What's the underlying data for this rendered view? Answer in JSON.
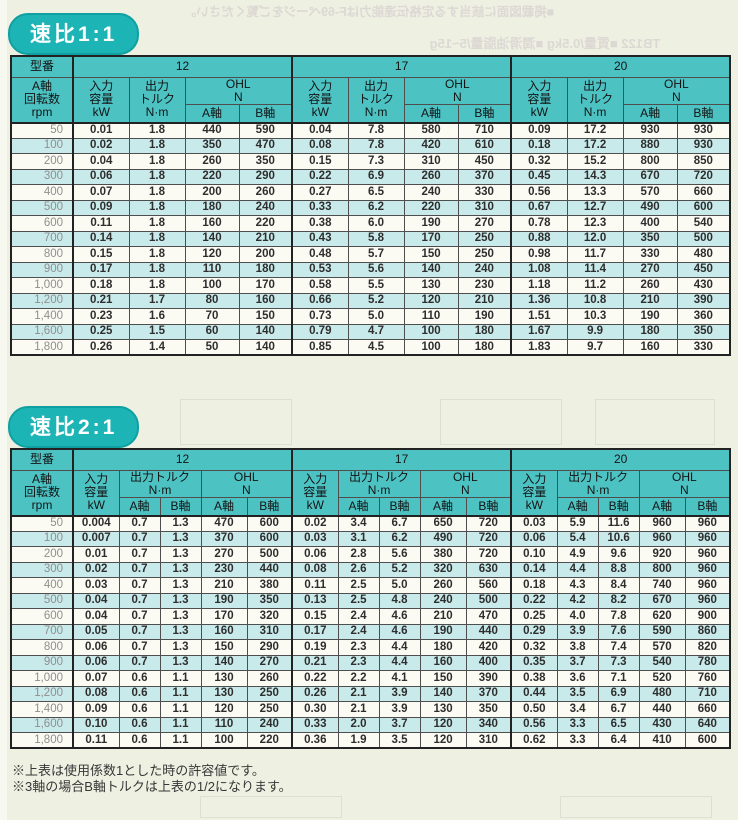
{
  "page": {
    "title_ratio_1": "速比1:1",
    "title_ratio_2": "速比2:1",
    "notes": [
      "※上表は使用係数1とした時の許容値です。",
      "※3軸の場合B軸トルクは上表の1/2になります。"
    ]
  },
  "colors": {
    "pill_teal": "#1db4b6",
    "header_teal": "#4cc2c3",
    "row_alt_cyan": "#c9eaea",
    "row_base": "#fbfbf3",
    "page_bg": "#eef0e2"
  },
  "headers": {
    "model": "型番",
    "models": [
      "12",
      "17",
      "20"
    ],
    "rpm": "A軸\n回転数\nrpm",
    "input": "入力\n容量\nkW",
    "torque_single": "出力\nトルク\nN·m",
    "torque_double": "出力トルク\nN·m",
    "ohl": "OHL\nN",
    "axis_a": "A軸",
    "axis_b": "B軸"
  },
  "table1": {
    "rows": [
      [
        "50",
        "0.01",
        "1.8",
        "440",
        "590",
        "0.04",
        "7.8",
        "580",
        "710",
        "0.09",
        "17.2",
        "930",
        "930"
      ],
      [
        "100",
        "0.02",
        "1.8",
        "350",
        "470",
        "0.08",
        "7.8",
        "420",
        "610",
        "0.18",
        "17.2",
        "880",
        "930"
      ],
      [
        "200",
        "0.04",
        "1.8",
        "260",
        "350",
        "0.15",
        "7.3",
        "310",
        "450",
        "0.32",
        "15.2",
        "800",
        "850"
      ],
      [
        "300",
        "0.06",
        "1.8",
        "220",
        "290",
        "0.22",
        "6.9",
        "260",
        "370",
        "0.45",
        "14.3",
        "670",
        "720"
      ],
      [
        "400",
        "0.07",
        "1.8",
        "200",
        "260",
        "0.27",
        "6.5",
        "240",
        "330",
        "0.56",
        "13.3",
        "570",
        "660"
      ],
      [
        "500",
        "0.09",
        "1.8",
        "180",
        "240",
        "0.33",
        "6.2",
        "220",
        "310",
        "0.67",
        "12.7",
        "490",
        "600"
      ],
      [
        "600",
        "0.11",
        "1.8",
        "160",
        "220",
        "0.38",
        "6.0",
        "190",
        "270",
        "0.78",
        "12.3",
        "400",
        "540"
      ],
      [
        "700",
        "0.14",
        "1.8",
        "140",
        "210",
        "0.43",
        "5.8",
        "170",
        "250",
        "0.88",
        "12.0",
        "350",
        "500"
      ],
      [
        "800",
        "0.15",
        "1.8",
        "120",
        "200",
        "0.48",
        "5.7",
        "150",
        "250",
        "0.98",
        "11.7",
        "330",
        "480"
      ],
      [
        "900",
        "0.17",
        "1.8",
        "110",
        "180",
        "0.53",
        "5.6",
        "140",
        "240",
        "1.08",
        "11.4",
        "270",
        "450"
      ],
      [
        "1,000",
        "0.18",
        "1.8",
        "100",
        "170",
        "0.58",
        "5.5",
        "130",
        "230",
        "1.18",
        "11.2",
        "260",
        "430"
      ],
      [
        "1,200",
        "0.21",
        "1.7",
        "80",
        "160",
        "0.66",
        "5.2",
        "120",
        "210",
        "1.36",
        "10.8",
        "210",
        "390"
      ],
      [
        "1,400",
        "0.23",
        "1.6",
        "70",
        "150",
        "0.73",
        "5.0",
        "110",
        "190",
        "1.51",
        "10.3",
        "190",
        "360"
      ],
      [
        "1,600",
        "0.25",
        "1.5",
        "60",
        "140",
        "0.79",
        "4.7",
        "100",
        "180",
        "1.67",
        "9.9",
        "180",
        "350"
      ],
      [
        "1,800",
        "0.26",
        "1.4",
        "50",
        "140",
        "0.85",
        "4.5",
        "100",
        "180",
        "1.83",
        "9.7",
        "160",
        "330"
      ]
    ]
  },
  "table2": {
    "rows": [
      [
        "50",
        "0.004",
        "0.7",
        "1.3",
        "470",
        "600",
        "0.02",
        "3.4",
        "6.7",
        "650",
        "720",
        "0.03",
        "5.9",
        "11.6",
        "960",
        "960"
      ],
      [
        "100",
        "0.007",
        "0.7",
        "1.3",
        "370",
        "600",
        "0.03",
        "3.1",
        "6.2",
        "490",
        "720",
        "0.06",
        "5.4",
        "10.6",
        "960",
        "960"
      ],
      [
        "200",
        "0.01",
        "0.7",
        "1.3",
        "270",
        "500",
        "0.06",
        "2.8",
        "5.6",
        "380",
        "720",
        "0.10",
        "4.9",
        "9.6",
        "920",
        "960"
      ],
      [
        "300",
        "0.02",
        "0.7",
        "1.3",
        "230",
        "440",
        "0.08",
        "2.6",
        "5.2",
        "320",
        "630",
        "0.14",
        "4.4",
        "8.8",
        "800",
        "960"
      ],
      [
        "400",
        "0.03",
        "0.7",
        "1.3",
        "210",
        "380",
        "0.11",
        "2.5",
        "5.0",
        "260",
        "560",
        "0.18",
        "4.3",
        "8.4",
        "740",
        "960"
      ],
      [
        "500",
        "0.04",
        "0.7",
        "1.3",
        "190",
        "350",
        "0.13",
        "2.5",
        "4.8",
        "240",
        "500",
        "0.22",
        "4.2",
        "8.2",
        "670",
        "960"
      ],
      [
        "600",
        "0.04",
        "0.7",
        "1.3",
        "170",
        "320",
        "0.15",
        "2.4",
        "4.6",
        "210",
        "470",
        "0.25",
        "4.0",
        "7.8",
        "620",
        "900"
      ],
      [
        "700",
        "0.05",
        "0.7",
        "1.3",
        "160",
        "310",
        "0.17",
        "2.4",
        "4.6",
        "190",
        "440",
        "0.29",
        "3.9",
        "7.6",
        "590",
        "860"
      ],
      [
        "800",
        "0.06",
        "0.7",
        "1.3",
        "150",
        "290",
        "0.19",
        "2.3",
        "4.4",
        "180",
        "420",
        "0.32",
        "3.8",
        "7.4",
        "570",
        "820"
      ],
      [
        "900",
        "0.06",
        "0.7",
        "1.3",
        "140",
        "270",
        "0.21",
        "2.3",
        "4.4",
        "160",
        "400",
        "0.35",
        "3.7",
        "7.3",
        "540",
        "780"
      ],
      [
        "1,000",
        "0.07",
        "0.6",
        "1.1",
        "130",
        "260",
        "0.22",
        "2.2",
        "4.1",
        "150",
        "390",
        "0.38",
        "3.6",
        "7.1",
        "520",
        "760"
      ],
      [
        "1,200",
        "0.08",
        "0.6",
        "1.1",
        "130",
        "250",
        "0.26",
        "2.1",
        "3.9",
        "140",
        "370",
        "0.44",
        "3.5",
        "6.9",
        "480",
        "710"
      ],
      [
        "1,400",
        "0.09",
        "0.6",
        "1.1",
        "120",
        "250",
        "0.30",
        "2.1",
        "3.9",
        "130",
        "350",
        "0.50",
        "3.4",
        "6.7",
        "440",
        "660"
      ],
      [
        "1,600",
        "0.10",
        "0.6",
        "1.1",
        "110",
        "240",
        "0.33",
        "2.0",
        "3.7",
        "120",
        "340",
        "0.56",
        "3.3",
        "6.5",
        "430",
        "640"
      ],
      [
        "1,800",
        "0.11",
        "0.6",
        "1.1",
        "100",
        "220",
        "0.36",
        "1.9",
        "3.5",
        "120",
        "310",
        "0.62",
        "3.3",
        "6.4",
        "410",
        "600"
      ]
    ]
  },
  "bleedthrough": {
    "line1": "■掲載図面に該当する定格伝達能力はF-69ページをご覧ください。",
    "line2": "TB122 ■質量/0.5kg ■潤滑油脂量/5~15g"
  }
}
